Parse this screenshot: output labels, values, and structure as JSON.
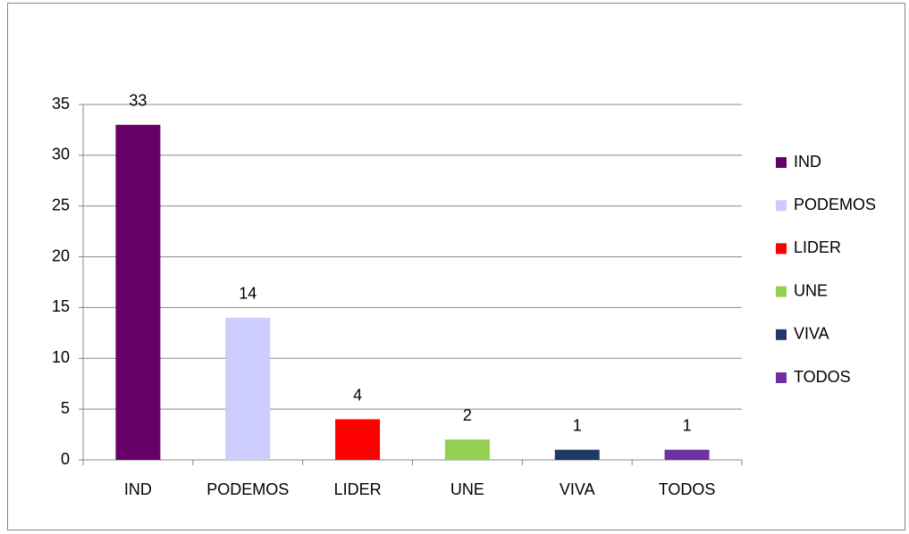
{
  "chart_data": {
    "type": "bar",
    "categories": [
      "IND",
      "PODEMOS",
      "LIDER",
      "UNE",
      "VIVA",
      "TODOS"
    ],
    "values": [
      33,
      14,
      4,
      2,
      1,
      1
    ],
    "colors": [
      "#660066",
      "#ccccff",
      "#ff0000",
      "#92d050",
      "#1f3864",
      "#7030a0"
    ],
    "ylim": [
      0,
      35
    ],
    "yticks": [
      0,
      5,
      10,
      15,
      20,
      25,
      30,
      35
    ],
    "grid": true,
    "legend": "right"
  }
}
